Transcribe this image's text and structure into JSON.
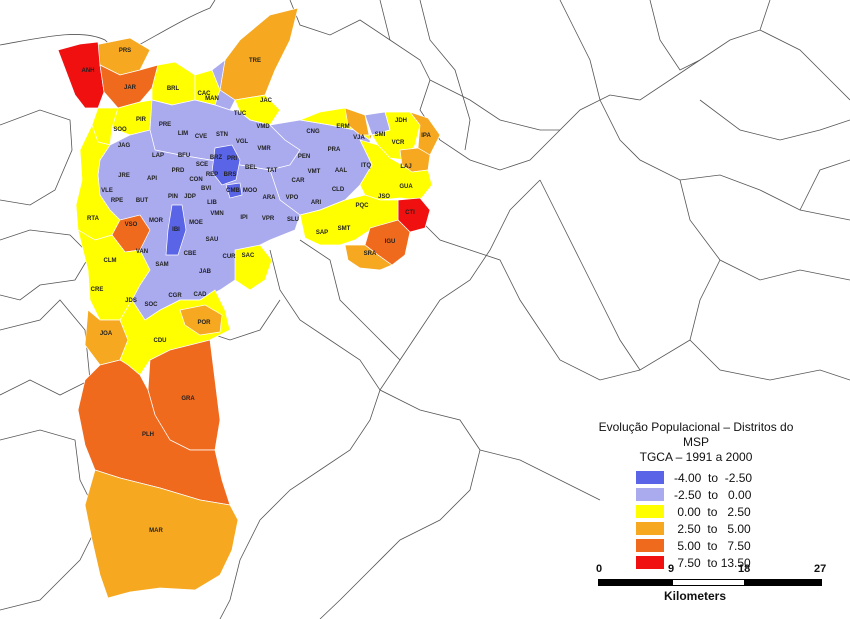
{
  "legend": {
    "title_line1": "Evolução Populacional – Distritos do MSP",
    "title_line2": "TGCA – 1991 a 2000",
    "classes": [
      {
        "label": "-4.00  to  -2.50",
        "color": "#5a64e6"
      },
      {
        "label": "-2.50  to   0.00",
        "color": "#aaaaee"
      },
      {
        "label": " 0.00  to   2.50",
        "color": "#ffff00"
      },
      {
        "label": " 2.50  to   5.00",
        "color": "#f5a820"
      },
      {
        "label": " 5.00  to   7.50",
        "color": "#f06a1e"
      },
      {
        "label": " 7.50  to 13.50",
        "color": "#f01010"
      }
    ]
  },
  "scale_bar": {
    "ticks": [
      "0",
      "9",
      "18",
      "27"
    ],
    "unit": "Kilometers"
  },
  "districts": [
    {
      "code": "PRS",
      "cls": 3
    },
    {
      "code": "TRE",
      "cls": 3
    },
    {
      "code": "ANH",
      "cls": 5
    },
    {
      "code": "JAR",
      "cls": 4
    },
    {
      "code": "BRL",
      "cls": 2
    },
    {
      "code": "CAC",
      "cls": 2
    },
    {
      "code": "MAN",
      "cls": 1
    },
    {
      "code": "JAC",
      "cls": 2
    },
    {
      "code": "PIR",
      "cls": 2
    },
    {
      "code": "SOO",
      "cls": 2
    },
    {
      "code": "PRE",
      "cls": 2
    },
    {
      "code": "LIM",
      "cls": 1
    },
    {
      "code": "CVE",
      "cls": 1
    },
    {
      "code": "STN",
      "cls": 1
    },
    {
      "code": "TUC",
      "cls": 1
    },
    {
      "code": "VMD",
      "cls": 1
    },
    {
      "code": "JAG",
      "cls": 2
    },
    {
      "code": "LAP",
      "cls": 1
    },
    {
      "code": "BFU",
      "cls": 1
    },
    {
      "code": "VGL",
      "cls": 1
    },
    {
      "code": "VMR",
      "cls": 1
    },
    {
      "code": "CNG",
      "cls": 2
    },
    {
      "code": "ERM",
      "cls": 2
    },
    {
      "code": "VJA",
      "cls": 3
    },
    {
      "code": "SMI",
      "cls": 1
    },
    {
      "code": "JDH",
      "cls": 2
    },
    {
      "code": "IPA",
      "cls": 3
    },
    {
      "code": "VCR",
      "cls": 2
    },
    {
      "code": "PEN",
      "cls": 1
    },
    {
      "code": "PRA",
      "cls": 1
    },
    {
      "code": "ITQ",
      "cls": 2
    },
    {
      "code": "LAJ",
      "cls": 3
    },
    {
      "code": "JRE",
      "cls": 2
    },
    {
      "code": "API",
      "cls": 1
    },
    {
      "code": "PRD",
      "cls": 1
    },
    {
      "code": "SCE",
      "cls": 1
    },
    {
      "code": "BRZ",
      "cls": 0
    },
    {
      "code": "PRI",
      "cls": 0
    },
    {
      "code": "BEL",
      "cls": 1
    },
    {
      "code": "TAT",
      "cls": 1
    },
    {
      "code": "VMT",
      "cls": 1
    },
    {
      "code": "AAL",
      "cls": 1
    },
    {
      "code": "GUA",
      "cls": 2
    },
    {
      "code": "VLE",
      "cls": 2
    },
    {
      "code": "CON",
      "cls": 1
    },
    {
      "code": "REP",
      "cls": 0
    },
    {
      "code": "BRS",
      "cls": 0
    },
    {
      "code": "CAR",
      "cls": 1
    },
    {
      "code": "CLD",
      "cls": 2
    },
    {
      "code": "RPE",
      "cls": 2
    },
    {
      "code": "BUT",
      "cls": 2
    },
    {
      "code": "BVI",
      "cls": 1
    },
    {
      "code": "CMB",
      "cls": 0
    },
    {
      "code": "MOO",
      "cls": 1
    },
    {
      "code": "ARA",
      "cls": 1
    },
    {
      "code": "VPO",
      "cls": 1
    },
    {
      "code": "JSO",
      "cls": 2
    },
    {
      "code": "PQC",
      "cls": 2
    },
    {
      "code": "CTI",
      "cls": 5
    },
    {
      "code": "PIN",
      "cls": 1
    },
    {
      "code": "JDP",
      "cls": 1
    },
    {
      "code": "LIB",
      "cls": 1
    },
    {
      "code": "ARI",
      "cls": 1
    },
    {
      "code": "RTA",
      "cls": 2
    },
    {
      "code": "MOR",
      "cls": 1
    },
    {
      "code": "IPI",
      "cls": 1
    },
    {
      "code": "VPR",
      "cls": 1
    },
    {
      "code": "SLU",
      "cls": 1
    },
    {
      "code": "VSO",
      "cls": 2
    },
    {
      "code": "IBI",
      "cls": 0
    },
    {
      "code": "MOE",
      "cls": 1
    },
    {
      "code": "VMN",
      "cls": 1
    },
    {
      "code": "SAP",
      "cls": 2
    },
    {
      "code": "SMT",
      "cls": 2
    },
    {
      "code": "IGU",
      "cls": 4
    },
    {
      "code": "SAU",
      "cls": 1
    },
    {
      "code": "VAN",
      "cls": 4
    },
    {
      "code": "SRA",
      "cls": 3
    },
    {
      "code": "CBE",
      "cls": 1
    },
    {
      "code": "SAC",
      "cls": 2
    },
    {
      "code": "CLM",
      "cls": 2
    },
    {
      "code": "SAM",
      "cls": 1
    },
    {
      "code": "JAB",
      "cls": 1
    },
    {
      "code": "CUR",
      "cls": 1
    },
    {
      "code": "CRE",
      "cls": 2
    },
    {
      "code": "JDS",
      "cls": 2
    },
    {
      "code": "SOC",
      "cls": 1
    },
    {
      "code": "CGR",
      "cls": 2
    },
    {
      "code": "CAD",
      "cls": 2
    },
    {
      "code": "JOA",
      "cls": 3
    },
    {
      "code": "POR",
      "cls": 3
    },
    {
      "code": "CDU",
      "cls": 2
    },
    {
      "code": "GRA",
      "cls": 4
    },
    {
      "code": "PLH",
      "cls": 4
    },
    {
      "code": "MAR",
      "cls": 3
    }
  ]
}
